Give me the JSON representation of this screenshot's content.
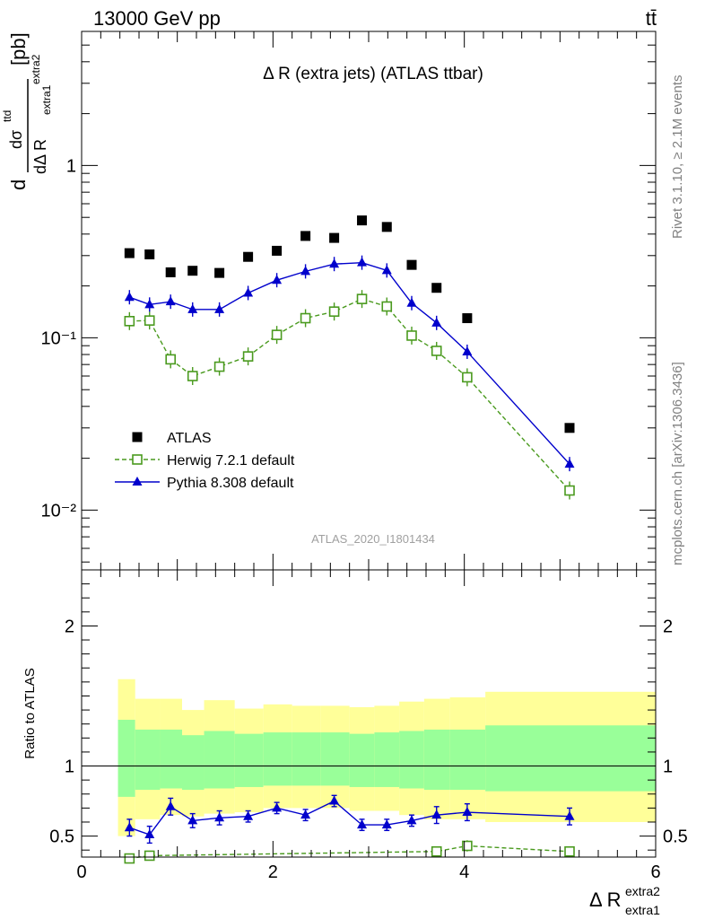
{
  "header": {
    "left": "13000 GeV pp",
    "right": "tt̄"
  },
  "side_labels": {
    "rivet": "Rivet 3.1.10, ≥ 2.1M events",
    "mcplots": "mcplots.cern.ch [arXiv:1306.3436]"
  },
  "colors": {
    "data": "#000000",
    "herwig": "#4a9a1e",
    "pythia": "#0000cc",
    "band_outer": "#ffff99",
    "band_inner": "#99ff99"
  },
  "chart_data": [
    {
      "type": "scatter",
      "title": "Δ R (extra jets) (ATLAS ttbar)",
      "watermark": "ATLAS_2020_I1801434",
      "ylabel": "dσ^{tt̄d} / dΔ R_{extra1}^{extra2} [pb]",
      "ylabel_parts": {
        "d1": "d",
        "dsigma": "dσ",
        "sigsup": "ttd",
        "dR": "dΔ R",
        "rsub": "extra1",
        "rsup": "extra2",
        "unit": "[pb]"
      },
      "xlim": [
        0,
        6
      ],
      "ylim": [
        0.0045,
        6
      ],
      "yscale": "log",
      "yticks": [
        0.01,
        0.1,
        1
      ],
      "ytick_labels": [
        "10⁻²",
        "10⁻¹",
        "1"
      ],
      "legend_position": "lower-left",
      "series": [
        {
          "name": "ATLAS",
          "x": [
            0.5,
            0.71,
            0.93,
            1.16,
            1.44,
            1.74,
            2.04,
            2.34,
            2.64,
            2.93,
            3.19,
            3.45,
            3.71,
            4.03,
            5.1
          ],
          "y": [
            0.31,
            0.305,
            0.24,
            0.245,
            0.238,
            0.295,
            0.32,
            0.39,
            0.38,
            0.48,
            0.44,
            0.265,
            0.195,
            0.13,
            0.03
          ]
        },
        {
          "name": "Herwig 7.2.1 default",
          "x": [
            0.5,
            0.71,
            0.93,
            1.16,
            1.44,
            1.74,
            2.04,
            2.34,
            2.64,
            2.93,
            3.19,
            3.45,
            3.71,
            4.03,
            5.1
          ],
          "y": [
            0.125,
            0.126,
            0.075,
            0.06,
            0.068,
            0.078,
            0.104,
            0.13,
            0.142,
            0.168,
            0.152,
            0.103,
            0.084,
            0.059,
            0.013
          ]
        },
        {
          "name": "Pythia 8.308 default",
          "x": [
            0.5,
            0.71,
            0.93,
            1.16,
            1.44,
            1.74,
            2.04,
            2.34,
            2.64,
            2.93,
            3.19,
            3.45,
            3.71,
            4.03,
            5.1
          ],
          "y": [
            0.172,
            0.156,
            0.162,
            0.146,
            0.146,
            0.182,
            0.216,
            0.243,
            0.268,
            0.273,
            0.246,
            0.159,
            0.122,
            0.083,
            0.0185
          ]
        }
      ]
    },
    {
      "type": "scatter",
      "ylabel": "Ratio to ATLAS",
      "xlabel": "Δ R_{extra1}^{extra2}",
      "xlabel_parts": {
        "main": "Δ R",
        "sup": "extra2",
        "sub": "extra1"
      },
      "xlim": [
        0,
        6
      ],
      "ylim": [
        0.35,
        2.4
      ],
      "yticks": [
        0.5,
        1,
        2
      ],
      "ytick_labels": [
        "0.5",
        "1",
        "2"
      ],
      "xticks": [
        0,
        2,
        4,
        6
      ],
      "xtick_labels": [
        "0",
        "2",
        "4",
        "6"
      ],
      "bands": {
        "edges": [
          0.38,
          0.56,
          0.82,
          1.05,
          1.28,
          1.6,
          1.9,
          2.2,
          2.5,
          2.8,
          3.06,
          3.32,
          3.58,
          3.85,
          4.22,
          6.0
        ],
        "yellow_low": [
          0.5,
          0.62,
          0.65,
          0.64,
          0.66,
          0.67,
          0.7,
          0.7,
          0.7,
          0.68,
          0.68,
          0.65,
          0.62,
          0.62,
          0.6
        ],
        "yellow_high": [
          1.62,
          1.48,
          1.48,
          1.4,
          1.47,
          1.41,
          1.44,
          1.43,
          1.43,
          1.42,
          1.43,
          1.46,
          1.48,
          1.49,
          1.53
        ],
        "green_low": [
          0.78,
          0.83,
          0.84,
          0.83,
          0.84,
          0.85,
          0.86,
          0.86,
          0.86,
          0.85,
          0.85,
          0.84,
          0.83,
          0.83,
          0.82
        ],
        "green_high": [
          1.33,
          1.26,
          1.26,
          1.22,
          1.25,
          1.23,
          1.24,
          1.24,
          1.24,
          1.23,
          1.24,
          1.25,
          1.26,
          1.26,
          1.29
        ]
      },
      "series": [
        {
          "name": "Herwig 7.2.1 default",
          "x": [
            0.5,
            0.71,
            3.71,
            4.03,
            5.1
          ],
          "y": [
            0.34,
            0.36,
            0.39,
            0.43,
            0.39
          ],
          "err": [
            0.03,
            0.03,
            0.03,
            0.04,
            0.03
          ]
        },
        {
          "name": "Pythia 8.308 default",
          "x": [
            0.5,
            0.71,
            0.93,
            1.16,
            1.44,
            1.74,
            2.04,
            2.34,
            2.64,
            2.93,
            3.19,
            3.45,
            3.71,
            4.03,
            5.1
          ],
          "y": [
            0.56,
            0.51,
            0.71,
            0.61,
            0.63,
            0.64,
            0.7,
            0.65,
            0.75,
            0.58,
            0.58,
            0.61,
            0.65,
            0.67,
            0.64
          ],
          "err": [
            0.06,
            0.06,
            0.06,
            0.05,
            0.05,
            0.04,
            0.04,
            0.04,
            0.04,
            0.04,
            0.04,
            0.04,
            0.06,
            0.06,
            0.06
          ]
        }
      ]
    }
  ]
}
